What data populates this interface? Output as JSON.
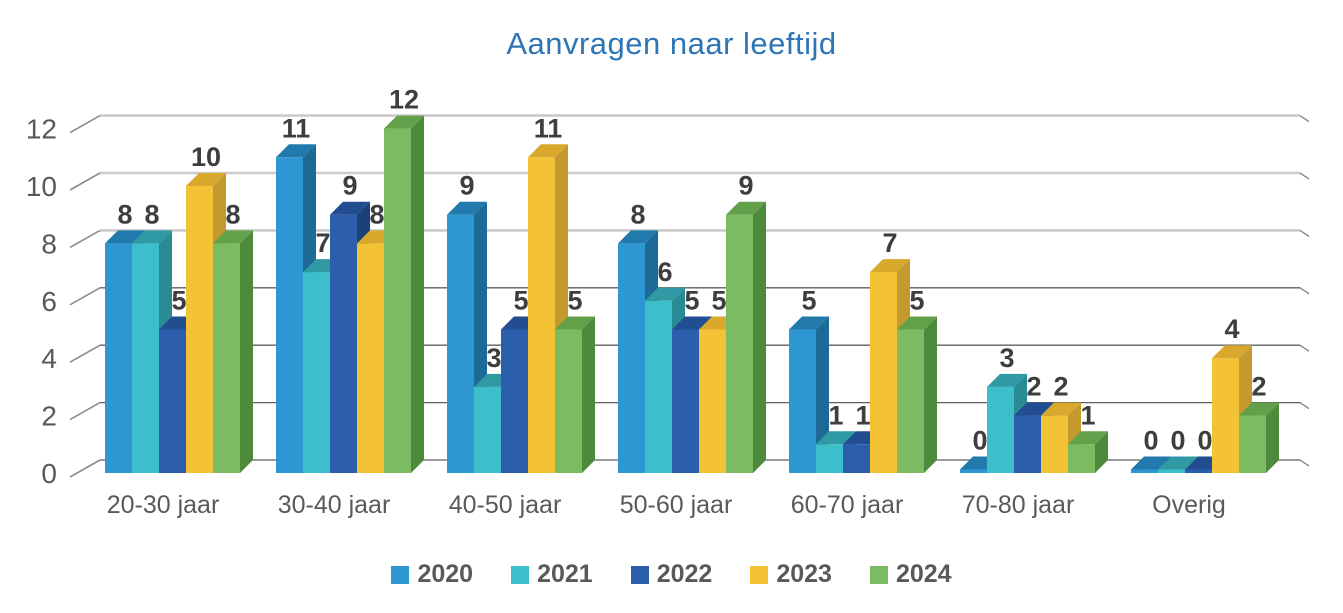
{
  "title": "Aanvragen naar leeftijd",
  "chart_data": {
    "type": "bar",
    "style": "3d-clustered",
    "title": "Aanvragen naar leeftijd",
    "categories": [
      "20-30 jaar",
      "30-40 jaar",
      "40-50 jaar",
      "50-60 jaar",
      "60-70 jaar",
      "70-80 jaar",
      "Overig"
    ],
    "series": [
      {
        "name": "2020",
        "color": "#2E96D2",
        "top_color": "#2279AB",
        "side_color": "#1D6A96",
        "values": [
          8,
          11,
          9,
          8,
          5,
          0,
          0
        ]
      },
      {
        "name": "2021",
        "color": "#3DBFCB",
        "top_color": "#2F99A4",
        "side_color": "#298B95",
        "values": [
          8,
          7,
          3,
          6,
          1,
          3,
          0
        ]
      },
      {
        "name": "2022",
        "color": "#2B5FAD",
        "top_color": "#224E91",
        "side_color": "#1C4179",
        "values": [
          5,
          9,
          5,
          5,
          1,
          2,
          0
        ]
      },
      {
        "name": "2023",
        "color": "#F3C235",
        "top_color": "#D8A92C",
        "side_color": "#C49A2E",
        "values": [
          10,
          8,
          11,
          5,
          7,
          2,
          4
        ]
      },
      {
        "name": "2024",
        "color": "#7CBB61",
        "top_color": "#63A04A",
        "side_color": "#4E8A3C",
        "values": [
          8,
          12,
          5,
          9,
          5,
          1,
          2
        ]
      }
    ],
    "y_axis": {
      "min": 0,
      "max": 12,
      "step": 2,
      "ticks": [
        0,
        2,
        4,
        6,
        8,
        10,
        12
      ]
    },
    "x_axis_label": "",
    "y_axis_label": "",
    "grid": true,
    "legend_position": "bottom",
    "data_labels": true
  },
  "colors": {
    "title_text": "#2E75B6",
    "axis_text": "#595959",
    "data_label_text": "#3E3E3E",
    "grid_light": "#CBCBCB",
    "grid_dark": "#5F5F5F",
    "tick_line": "#8C8C8C"
  }
}
